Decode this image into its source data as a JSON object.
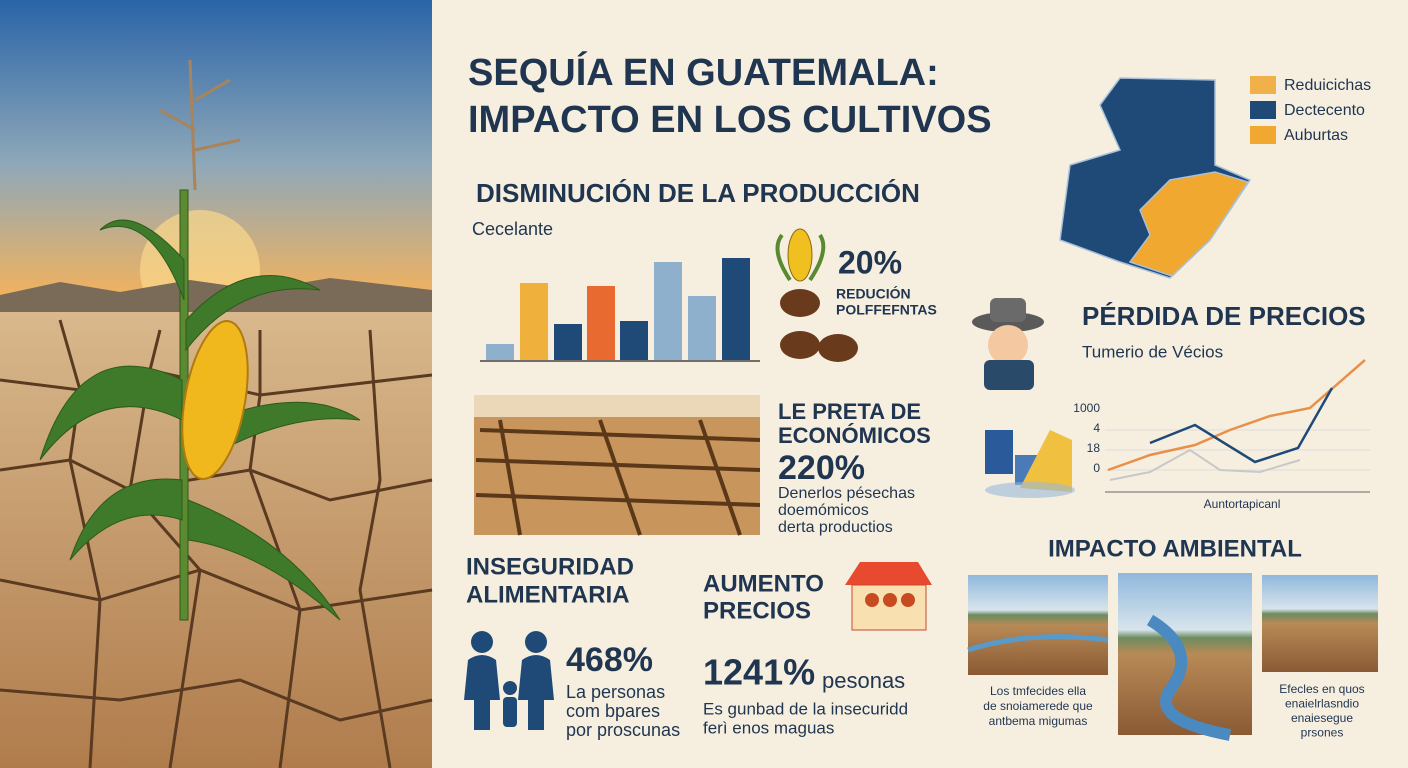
{
  "header": {
    "title_lines": [
      "SEQUÍA EN GUATEMALA:",
      "IMPACTO EN LOS CULTIVOS"
    ]
  },
  "map_legend": [
    {
      "label": "Reduicichas",
      "color": "#f0b04a"
    },
    {
      "label": "Dectecento",
      "color": "#1f4a78"
    },
    {
      "label": "Auburtas",
      "color": "#f0a830"
    }
  ],
  "production": {
    "heading": "DISMINUCIÓN DE LA PRODUCCIÓN",
    "subtitle": "Cecelante",
    "stat": "20%",
    "stat_label": [
      "REDUCIÓN",
      "POLFFEFNTAS"
    ]
  },
  "economic": {
    "heading": [
      "LE PRETA DE",
      "ECONÓMICOS"
    ],
    "stat": "220%",
    "lines": [
      "Denerlos pésechas",
      "doemómicos",
      "derta productios"
    ]
  },
  "prices_loss": {
    "heading": "PÉRDIDA DE PRECIOS",
    "subtitle": "Tumerio de Vécios",
    "ticks": [
      "1000",
      "4",
      "18",
      "0"
    ],
    "x_label": "Auntortapicanl"
  },
  "food_insecurity": {
    "heading": [
      "INSEGURIDAD",
      "ALIMENTARIA"
    ],
    "stat": "468%",
    "lines": [
      "La personas",
      "com bpares",
      "por proscunas"
    ]
  },
  "price_rise": {
    "heading": [
      "AUMENTO",
      "PRECIOS"
    ],
    "stat": "1241%",
    "stat_suffix": "pesonas",
    "lines": [
      "Es gunbad de la insecuridd",
      "ferì enos maguas"
    ]
  },
  "environment": {
    "heading": "IMPACTO AMBIENTAL",
    "captions": [
      [
        "Los tmfecides ella",
        "de snoiamerede que",
        "antbema migumas"
      ],
      [
        "Efecles en quos",
        "enaielrlasndio",
        "enaiesegue",
        "prsones"
      ]
    ]
  }
}
